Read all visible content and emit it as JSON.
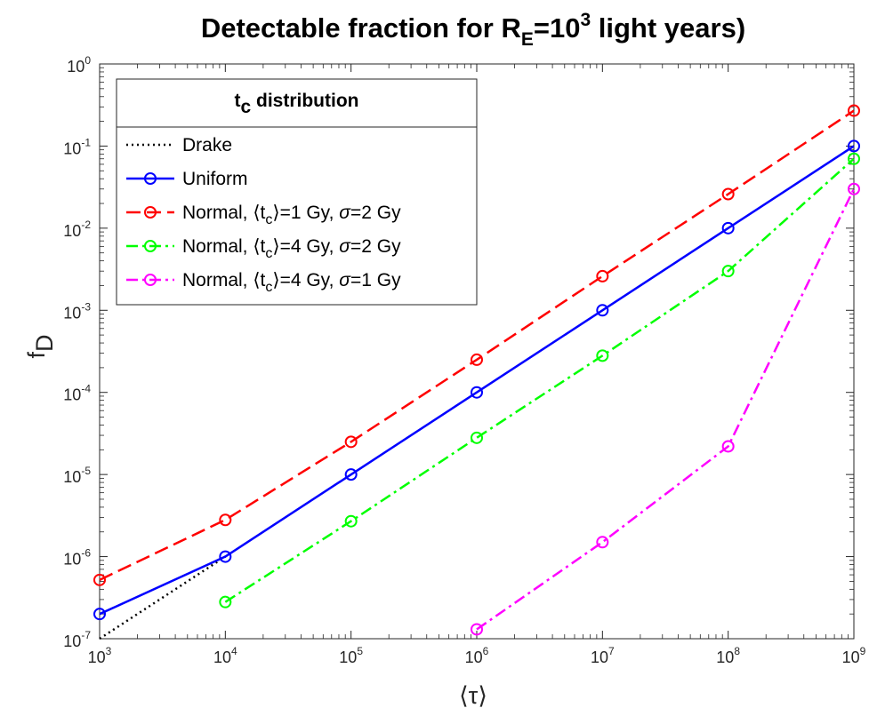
{
  "chart_data": {
    "type": "line",
    "title": {
      "text": "Detectable fraction for R",
      "sub": "E",
      "mid": "=10",
      "sup": "3",
      "tail": " light years)"
    },
    "xlabel": "⟨τ⟩",
    "ylabel": {
      "base": "f",
      "sub": "D"
    },
    "xscale": "log",
    "yscale": "log",
    "xlim": [
      1000,
      1000000000
    ],
    "ylim": [
      1e-07,
      1
    ],
    "xticks": [
      {
        "value": 1000,
        "base": "10",
        "exp": "3"
      },
      {
        "value": 10000,
        "base": "10",
        "exp": "4"
      },
      {
        "value": 100000,
        "base": "10",
        "exp": "5"
      },
      {
        "value": 1000000,
        "base": "10",
        "exp": "6"
      },
      {
        "value": 10000000,
        "base": "10",
        "exp": "7"
      },
      {
        "value": 100000000,
        "base": "10",
        "exp": "8"
      },
      {
        "value": 1000000000,
        "base": "10",
        "exp": "9"
      }
    ],
    "yticks": [
      {
        "value": 1e-07,
        "base": "10",
        "exp": "-7"
      },
      {
        "value": 1e-06,
        "base": "10",
        "exp": "-6"
      },
      {
        "value": 1e-05,
        "base": "10",
        "exp": "-5"
      },
      {
        "value": 0.0001,
        "base": "10",
        "exp": "-4"
      },
      {
        "value": 0.001,
        "base": "10",
        "exp": "-3"
      },
      {
        "value": 0.01,
        "base": "10",
        "exp": "-2"
      },
      {
        "value": 0.1,
        "base": "10",
        "exp": "-1"
      },
      {
        "value": 1,
        "base": "10",
        "exp": "0"
      }
    ],
    "grid": false,
    "legend": {
      "placement": "top-left",
      "title": {
        "base": "t",
        "sub": "c",
        "tail": " distribution"
      }
    },
    "series": [
      {
        "name": "Drake",
        "label_parts": [
          {
            "t": "Drake"
          }
        ],
        "color": "#000000",
        "dash": "dotted",
        "marker": false,
        "x": [
          1000,
          10000
        ],
        "y": [
          1e-07,
          1e-06
        ]
      },
      {
        "name": "Uniform",
        "label_parts": [
          {
            "t": "Uniform"
          }
        ],
        "color": "#0000ff",
        "dash": "solid",
        "marker": true,
        "x": [
          1000,
          10000,
          100000,
          1000000,
          10000000,
          100000000,
          1000000000
        ],
        "y": [
          2e-07,
          1e-06,
          1e-05,
          0.0001,
          0.001,
          0.01,
          0.1
        ]
      },
      {
        "name": "Normal, ⟨tc⟩=1 Gy, σ=2 Gy",
        "label_parts": [
          {
            "t": "Normal, ⟨t"
          },
          {
            "t": "c",
            "sub": true
          },
          {
            "t": "⟩=1 Gy, "
          },
          {
            "t": "σ",
            "italic": true
          },
          {
            "t": "=2 Gy"
          }
        ],
        "color": "#ff0000",
        "dash": "dashed",
        "marker": true,
        "x": [
          1000,
          10000,
          100000,
          1000000,
          10000000,
          100000000,
          1000000000
        ],
        "y": [
          5.2e-07,
          2.8e-06,
          2.5e-05,
          0.00025,
          0.0026,
          0.026,
          0.27
        ]
      },
      {
        "name": "Normal, ⟨tc⟩=4 Gy, σ=2 Gy",
        "label_parts": [
          {
            "t": "Normal, ⟨t"
          },
          {
            "t": "c",
            "sub": true
          },
          {
            "t": "⟩=4 Gy, "
          },
          {
            "t": "σ",
            "italic": true
          },
          {
            "t": "=2 Gy"
          }
        ],
        "color": "#00ff00",
        "dash": "dashdot",
        "marker": true,
        "x": [
          10000,
          100000,
          1000000,
          10000000,
          100000000,
          1000000000
        ],
        "y": [
          2.8e-07,
          2.7e-06,
          2.8e-05,
          0.00028,
          0.003,
          0.07
        ]
      },
      {
        "name": "Normal, ⟨tc⟩=4 Gy, σ=1 Gy",
        "label_parts": [
          {
            "t": "Normal, ⟨t"
          },
          {
            "t": "c",
            "sub": true
          },
          {
            "t": "⟩=4 Gy, "
          },
          {
            "t": "σ",
            "italic": true
          },
          {
            "t": "=1 Gy"
          }
        ],
        "color": "#ff00ff",
        "dash": "dashdot",
        "marker": true,
        "x": [
          1000000,
          10000000,
          100000000,
          1000000000
        ],
        "y": [
          1.3e-07,
          1.5e-06,
          2.2e-05,
          0.03
        ]
      }
    ]
  }
}
